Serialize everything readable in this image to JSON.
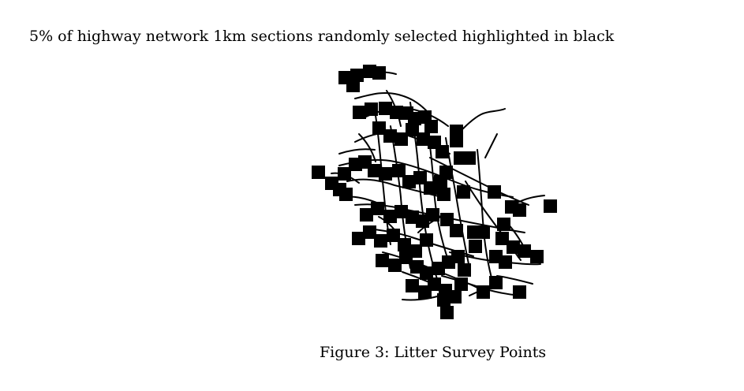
{
  "intro_text": "5% of highway network 1km sections randomly selected highlighted in black",
  "figure": {
    "caption": "Figure 3: Litter Survey Points",
    "marker_color": "#000000",
    "road_color": "#000000"
  }
}
